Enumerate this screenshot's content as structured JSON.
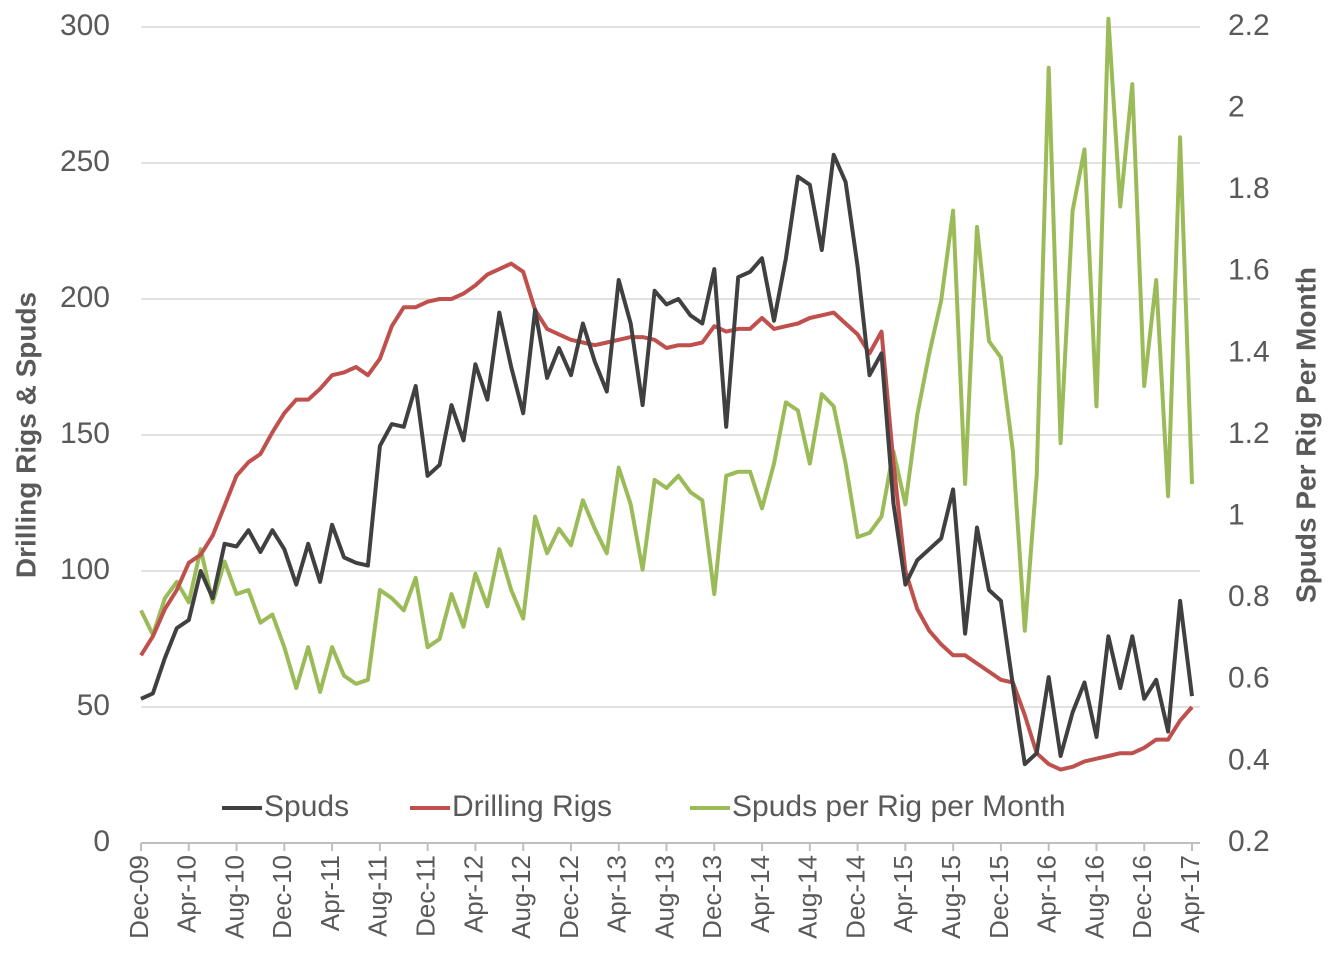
{
  "chart_data": {
    "type": "line",
    "y_label": "Drilling Rigs & Spuds",
    "y2_label": "Spuds Per Rig Per Month",
    "categories": [
      "Dec-09",
      null,
      null,
      null,
      "Apr-10",
      null,
      null,
      null,
      "Aug-10",
      null,
      null,
      null,
      "Dec-10",
      null,
      null,
      null,
      "Apr-11",
      null,
      null,
      null,
      "Aug-11",
      null,
      null,
      null,
      "Dec-11",
      null,
      null,
      null,
      "Apr-12",
      null,
      null,
      null,
      "Aug-12",
      null,
      null,
      null,
      "Dec-12",
      null,
      null,
      null,
      "Apr-13",
      null,
      null,
      null,
      "Aug-13",
      null,
      null,
      null,
      "Dec-13",
      null,
      null,
      null,
      "Apr-14",
      null,
      null,
      null,
      "Aug-14",
      null,
      null,
      null,
      "Dec-14",
      null,
      null,
      null,
      "Apr-15",
      null,
      null,
      null,
      "Aug-15",
      null,
      null,
      null,
      "Dec-15",
      null,
      null,
      null,
      "Apr-16",
      null,
      null,
      null,
      "Aug-16",
      null,
      null,
      null,
      "Dec-16",
      null,
      null,
      null,
      "Apr-17"
    ],
    "series": [
      {
        "name": "Spuds",
        "color": "#404040",
        "values": [
          53,
          55,
          68,
          79,
          82,
          100,
          90,
          110,
          109,
          115,
          107,
          115,
          108,
          95,
          110,
          96,
          117,
          105,
          103,
          102,
          146,
          154,
          153,
          168,
          135,
          139,
          161,
          148,
          176,
          163,
          195,
          175,
          158,
          196,
          171,
          182,
          172,
          191,
          177,
          166,
          207,
          191,
          161,
          203,
          198,
          200,
          194,
          191,
          211,
          153,
          208,
          210,
          215,
          192,
          215,
          245,
          242,
          218,
          253,
          243,
          212,
          172,
          180,
          125,
          95,
          104,
          108,
          112,
          130,
          77,
          116,
          93,
          89,
          58,
          29,
          33,
          61,
          32,
          48,
          59,
          39,
          76,
          57,
          76,
          53,
          60,
          41,
          89,
          54
        ]
      },
      {
        "name": "Drilling Rigs",
        "color": "#c0504d",
        "values": [
          69,
          76,
          86,
          93,
          103,
          106,
          113,
          124,
          135,
          140,
          143,
          151,
          158,
          163,
          163,
          167,
          172,
          173,
          175,
          172,
          178,
          190,
          197,
          197,
          199,
          200,
          200,
          202,
          205,
          209,
          211,
          213,
          210,
          196,
          189,
          187,
          185,
          184,
          183,
          184,
          185,
          186,
          186,
          185,
          182,
          183,
          183,
          184,
          190,
          188,
          189,
          189,
          193,
          189,
          190,
          191,
          193,
          194,
          195,
          191,
          187,
          180,
          188,
          140,
          100,
          86,
          78,
          73,
          69,
          69,
          66,
          63,
          60,
          59,
          47,
          33,
          29,
          27,
          28,
          30,
          31,
          32,
          33,
          33,
          35,
          38,
          38,
          45,
          50
        ]
      },
      {
        "name": "Spuds per Rig per Month",
        "color": "#9bbb59",
        "axis": "y2",
        "values": [
          0.77,
          0.71,
          0.8,
          0.84,
          0.79,
          0.92,
          0.79,
          0.89,
          0.81,
          0.82,
          0.74,
          0.76,
          0.68,
          0.58,
          0.68,
          0.57,
          0.68,
          0.61,
          0.59,
          0.6,
          0.82,
          0.8,
          0.77,
          0.85,
          0.68,
          0.7,
          0.81,
          0.73,
          0.86,
          0.78,
          0.92,
          0.82,
          0.75,
          1.0,
          0.91,
          0.97,
          0.93,
          1.04,
          0.97,
          0.91,
          1.12,
          1.03,
          0.87,
          1.09,
          1.07,
          1.1,
          1.06,
          1.04,
          0.81,
          1.1,
          1.11,
          1.11,
          1.02,
          1.13,
          1.28,
          1.26,
          1.13,
          1.3,
          1.27,
          1.13,
          0.95,
          0.96,
          1.0,
          1.16,
          1.03,
          1.25,
          1.4,
          1.53,
          1.75,
          1.08,
          1.71,
          1.43,
          1.39,
          1.16,
          0.72,
          1.1,
          2.1,
          1.18,
          1.75,
          1.9,
          1.27,
          2.22,
          1.76,
          2.06,
          1.32,
          1.58,
          1.05,
          1.93,
          1.08
        ]
      }
    ],
    "ylim": [
      0,
      300
    ],
    "yticks": [
      0,
      50,
      100,
      150,
      200,
      250,
      300
    ],
    "y2lim": [
      0.2,
      2.2
    ],
    "y2ticks": [
      0.2,
      0.4,
      0.6,
      0.8,
      1,
      1.2,
      1.4,
      1.6,
      1.8,
      2,
      2.2
    ],
    "grid": true,
    "legend": "lower center"
  }
}
